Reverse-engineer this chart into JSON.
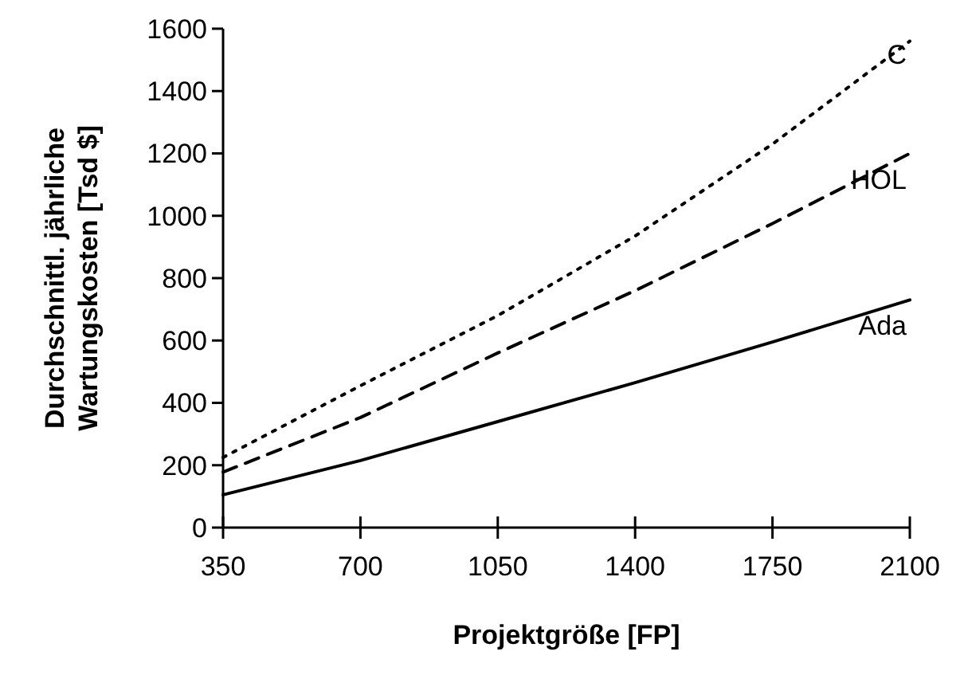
{
  "chart_data": {
    "type": "line",
    "xlabel": "Projektgröße [FP]",
    "ylabel": "Durchschnittl. jährliche\nWartungskosten [Tsd $]",
    "x": [
      350,
      700,
      1050,
      1400,
      1750,
      2100
    ],
    "series": [
      {
        "name": "C",
        "color": "#000000",
        "line_style": "dotted",
        "values": [
          225,
          455,
          680,
          935,
          1230,
          1560
        ]
      },
      {
        "name": "HOL",
        "color": "#000000",
        "line_style": "dashed",
        "values": [
          178,
          353,
          560,
          760,
          975,
          1200
        ]
      },
      {
        "name": "Ada",
        "color": "#000000",
        "line_style": "solid",
        "values": [
          105,
          215,
          340,
          465,
          595,
          730
        ]
      }
    ],
    "xlim": [
      350,
      2100
    ],
    "xticks": [
      350,
      700,
      1050,
      1400,
      1750,
      2100
    ],
    "ylim": [
      0,
      1600
    ],
    "yticks": [
      0,
      200,
      400,
      600,
      800,
      1000,
      1200,
      1400,
      1600
    ]
  }
}
